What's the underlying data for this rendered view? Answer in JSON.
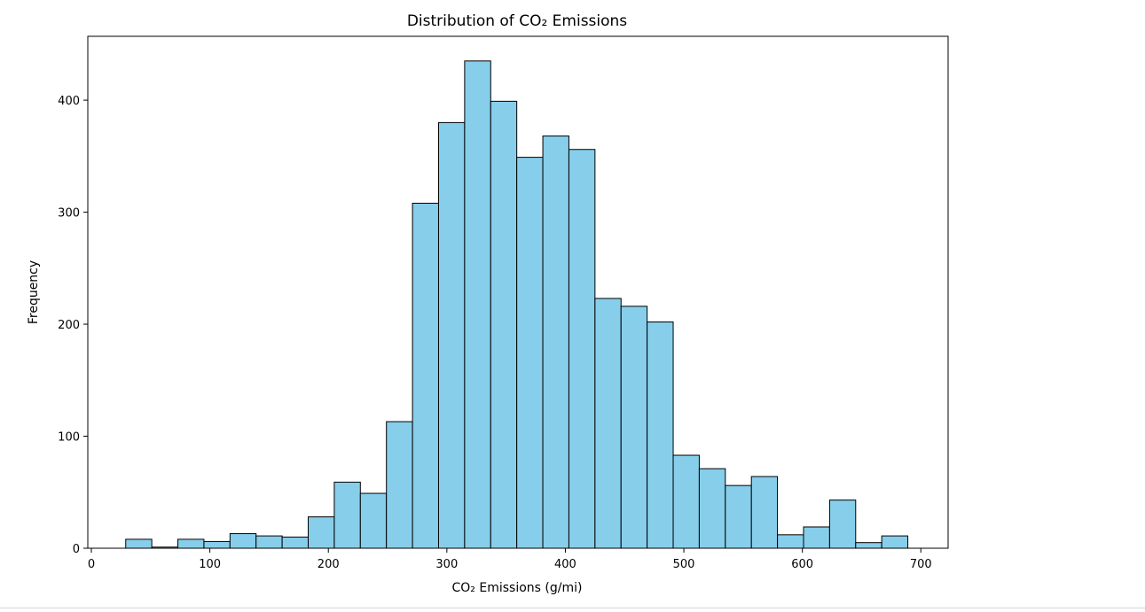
{
  "chart_data": {
    "type": "bar",
    "title": "Distribution of CO₂ Emissions",
    "xlabel": "CO₂ Emissions (g/mi)",
    "ylabel": "Frequency",
    "xlim": [
      -3,
      723
    ],
    "ylim": [
      0,
      457
    ],
    "grid": false,
    "legend": "none",
    "bin_edges": [
      29,
      51,
      73,
      95,
      117,
      139,
      161,
      183,
      205,
      227,
      249,
      271,
      293,
      315,
      337,
      359,
      381,
      403,
      425,
      447,
      469,
      491,
      513,
      535,
      557,
      579,
      601,
      623,
      645,
      667,
      689
    ],
    "values": [
      8,
      1,
      8,
      6,
      13,
      11,
      10,
      28,
      59,
      49,
      113,
      308,
      380,
      435,
      399,
      349,
      368,
      356,
      223,
      216,
      202,
      83,
      71,
      56,
      64,
      12,
      19,
      43,
      5,
      11
    ],
    "xticks": [
      0,
      100,
      200,
      300,
      400,
      500,
      600,
      700
    ],
    "yticks": [
      0,
      100,
      200,
      300,
      400
    ],
    "colors": {
      "bar_fill": "#87ceeb",
      "bar_edge": "#000000",
      "axis": "#000000"
    }
  }
}
